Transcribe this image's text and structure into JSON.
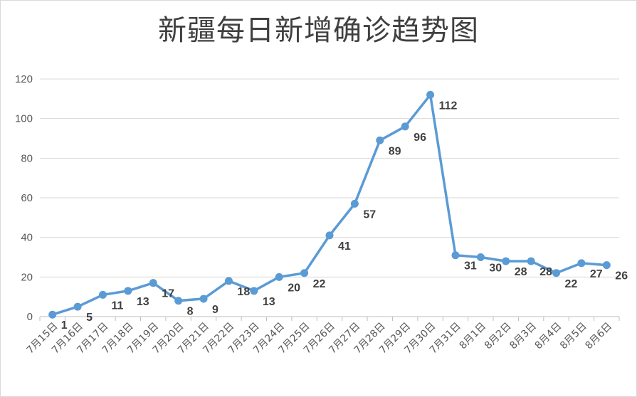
{
  "chart_data": {
    "type": "line",
    "title": "新疆每日新增确诊趋势图",
    "xlabel": "",
    "ylabel": "",
    "ylim": [
      0,
      120
    ],
    "yticks": [
      0,
      20,
      40,
      60,
      80,
      100,
      120
    ],
    "grid": true,
    "legend": "none",
    "line_color": "#5b9bd5",
    "categories": [
      "7月15日",
      "7月16日",
      "7月17日",
      "7月18日",
      "7月19日",
      "7月20日",
      "7月21日",
      "7月22日",
      "7月23日",
      "7月24日",
      "7月25日",
      "7月26日",
      "7月27日",
      "7月28日",
      "7月29日",
      "7月30日",
      "7月31日",
      "8月1日",
      "8月2日",
      "8月3日",
      "8月4日",
      "8月5日",
      "8月6日"
    ],
    "series": [
      {
        "values": [
          1,
          5,
          11,
          13,
          17,
          8,
          9,
          18,
          13,
          20,
          22,
          41,
          57,
          89,
          96,
          112,
          31,
          30,
          28,
          28,
          22,
          27,
          26
        ]
      }
    ],
    "data_labels": [
      "1",
      "5",
      "11",
      "13",
      "17",
      "8",
      "9",
      "18",
      "13",
      "20",
      "22",
      "41",
      "57",
      "89",
      "96",
      "112",
      "31",
      "30",
      "28",
      "28",
      "22",
      "27",
      "26"
    ]
  }
}
